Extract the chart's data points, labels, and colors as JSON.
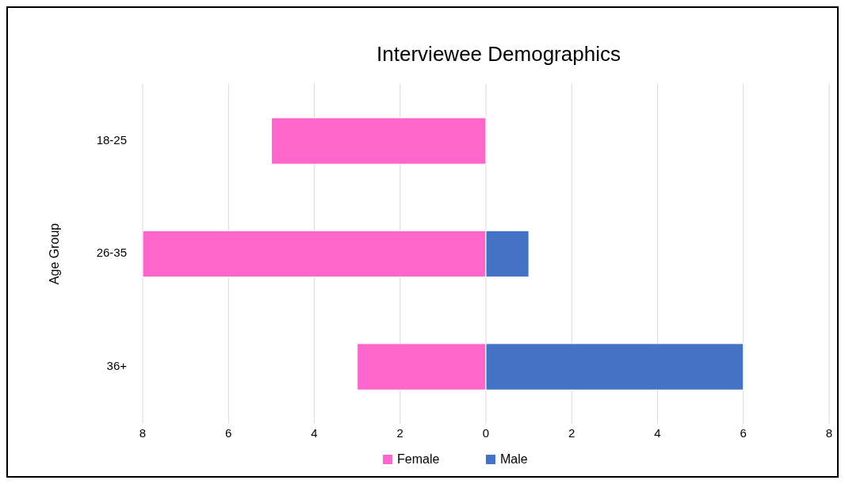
{
  "chart_data": {
    "type": "bar",
    "title": "Interviewee Demographics",
    "ylabel": "Age Group",
    "categories": [
      "18-25",
      "26-35",
      "36+"
    ],
    "orientation": "horizontal",
    "stacked": true,
    "series": [
      {
        "name": "Female",
        "color": "#ff66cc",
        "values": [
          -5,
          -8,
          -3
        ]
      },
      {
        "name": "Male",
        "color": "#4472c4",
        "values": [
          0,
          1,
          6
        ]
      }
    ],
    "xlim": [
      -8,
      8
    ],
    "xticks": [
      {
        "value": -8,
        "label": "8"
      },
      {
        "value": -6,
        "label": "6"
      },
      {
        "value": -4,
        "label": "4"
      },
      {
        "value": -2,
        "label": "2"
      },
      0,
      2,
      4,
      6,
      8
    ],
    "grid": "x",
    "legend": "bottom"
  }
}
